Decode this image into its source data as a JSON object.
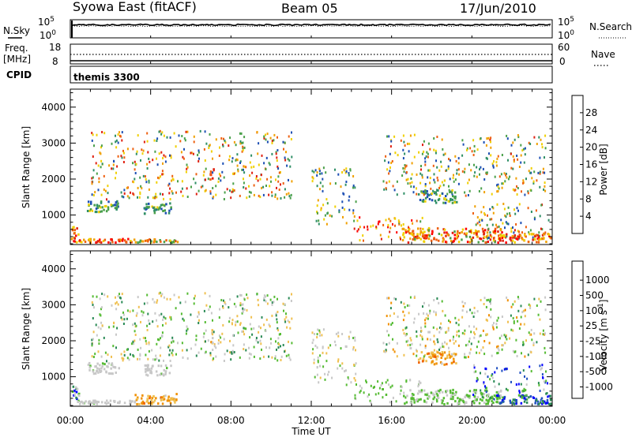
{
  "header": {
    "station": "Syowa East (fitACF)",
    "beam": "Beam 05",
    "date": "17/Jun/2010"
  },
  "noise_panel": {
    "left_label": "N.Sky",
    "right_label": "N.Search",
    "left_ticks": [
      "10^5",
      "10^0"
    ],
    "right_ticks": [
      "10^5",
      "10^0"
    ]
  },
  "freq_panel": {
    "left_label_line1": "Freq.",
    "left_label_line2": "[MHz]",
    "right_label": "Nave",
    "left_ticks": [
      "18",
      "8"
    ],
    "right_ticks": [
      "60",
      "0"
    ]
  },
  "cpid_panel": {
    "label": "CPID",
    "program": "themis 3300"
  },
  "colors": {
    "power": [
      "#0000ff",
      "#1d4fb4",
      "#2f8f66",
      "#4aa04a",
      "#f0d000",
      "#f0a000",
      "#ee6010",
      "#e02010",
      "#ff0000"
    ],
    "velocity": [
      "#ff0000",
      "#f06000",
      "#f09000",
      "#f0c050",
      "#c8c8c8",
      "#55bb33",
      "#2a8a55",
      "#2050c0",
      "#0000ff"
    ]
  },
  "chart_data": [
    {
      "type": "heatmap",
      "name": "power",
      "ylabel": "Slant Range [km]",
      "xlabel": "",
      "yticks": [
        1000,
        2000,
        3000,
        4000
      ],
      "ylim": [
        180,
        4500
      ],
      "xlim": [
        "00:00",
        "24:00"
      ],
      "colorbar": {
        "label": "Power [dB]",
        "ticks": [
          "4",
          "8",
          "12",
          "16",
          "20",
          "24",
          "28"
        ],
        "range": [
          0,
          30
        ]
      },
      "clusters": [
        {
          "t": [
            0.0,
            0.4
          ],
          "r": [
            200,
            700
          ],
          "v": [
            14,
            30
          ]
        },
        {
          "t": [
            0.3,
            3.2
          ],
          "r": [
            200,
            300
          ],
          "v": [
            14,
            30
          ]
        },
        {
          "t": [
            3.2,
            5.3
          ],
          "r": [
            200,
            300
          ],
          "v": [
            10,
            24
          ]
        },
        {
          "t": [
            0.8,
            2.4
          ],
          "r": [
            1050,
            1350
          ],
          "v": [
            4,
            16
          ]
        },
        {
          "t": [
            3.6,
            5.0
          ],
          "r": [
            1000,
            1300
          ],
          "v": [
            4,
            14
          ]
        },
        {
          "t": [
            6.9,
            7.1
          ],
          "r": [
            1900,
            2300
          ],
          "v": [
            18,
            28
          ]
        },
        {
          "t": [
            14.1,
            17.5
          ],
          "r": [
            250,
            900
          ],
          "v": [
            12,
            28
          ]
        },
        {
          "t": [
            16.5,
            21.5
          ],
          "r": [
            200,
            600
          ],
          "v": [
            12,
            30
          ]
        },
        {
          "t": [
            17.3,
            19.2
          ],
          "r": [
            1300,
            1650
          ],
          "v": [
            4,
            16
          ]
        },
        {
          "t": [
            20.0,
            23.8
          ],
          "r": [
            300,
            1300
          ],
          "v": [
            4,
            24
          ]
        },
        {
          "t": [
            21.2,
            23.9
          ],
          "r": [
            200,
            450
          ],
          "v": [
            14,
            30
          ]
        },
        {
          "t": [
            1.0,
            11.0
          ],
          "r": [
            1400,
            3300
          ],
          "v": [
            4,
            26
          ]
        },
        {
          "t": [
            12.0,
            14.2
          ],
          "r": [
            700,
            2300
          ],
          "v": [
            4,
            20
          ]
        },
        {
          "t": [
            15.5,
            23.7
          ],
          "r": [
            1500,
            3200
          ],
          "v": [
            4,
            24
          ]
        }
      ]
    },
    {
      "type": "heatmap",
      "name": "velocity",
      "ylabel": "Slant Range [km]",
      "xlabel": "Time UT",
      "yticks": [
        1000,
        2000,
        3000,
        4000
      ],
      "xticks": [
        "00:00",
        "04:00",
        "08:00",
        "12:00",
        "16:00",
        "20:00",
        "00:00"
      ],
      "ylim": [
        180,
        4500
      ],
      "xlim": [
        "00:00",
        "24:00"
      ],
      "colorbar": {
        "label": "Velocity [m s^-1]",
        "ticks": [
          "-1000",
          "-500",
          "-100",
          "-25",
          "25",
          "100",
          "500",
          "1000"
        ],
        "range": [
          -1200,
          1200
        ]
      },
      "clusters": [
        {
          "t": [
            0.0,
            0.4
          ],
          "r": [
            200,
            700
          ],
          "v": [
            -200,
            1200
          ]
        },
        {
          "t": [
            0.3,
            3.2
          ],
          "r": [
            200,
            300
          ],
          "v": [
            -50,
            150
          ]
        },
        {
          "t": [
            3.2,
            5.3
          ],
          "r": [
            200,
            500
          ],
          "v": [
            -700,
            -100
          ]
        },
        {
          "t": [
            0.8,
            2.4
          ],
          "r": [
            1050,
            1350
          ],
          "v": [
            -50,
            150
          ]
        },
        {
          "t": [
            3.6,
            5.0
          ],
          "r": [
            1000,
            1300
          ],
          "v": [
            -50,
            150
          ]
        },
        {
          "t": [
            6.9,
            7.1
          ],
          "r": [
            1900,
            2300
          ],
          "v": [
            -600,
            300
          ]
        },
        {
          "t": [
            14.1,
            17.5
          ],
          "r": [
            250,
            900
          ],
          "v": [
            30,
            400
          ]
        },
        {
          "t": [
            16.5,
            21.5
          ],
          "r": [
            200,
            600
          ],
          "v": [
            20,
            300
          ]
        },
        {
          "t": [
            17.3,
            19.2
          ],
          "r": [
            1300,
            1650
          ],
          "v": [
            -800,
            -100
          ]
        },
        {
          "t": [
            20.0,
            23.8
          ],
          "r": [
            300,
            1300
          ],
          "v": [
            -50,
            1200
          ]
        },
        {
          "t": [
            21.2,
            23.9
          ],
          "r": [
            200,
            450
          ],
          "v": [
            200,
            1200
          ]
        },
        {
          "t": [
            1.0,
            11.0
          ],
          "r": [
            1400,
            3300
          ],
          "v": [
            -400,
            600
          ]
        },
        {
          "t": [
            12.0,
            14.2
          ],
          "r": [
            700,
            2300
          ],
          "v": [
            -300,
            300
          ]
        },
        {
          "t": [
            15.5,
            23.7
          ],
          "r": [
            1500,
            3200
          ],
          "v": [
            -500,
            500
          ]
        }
      ]
    }
  ]
}
